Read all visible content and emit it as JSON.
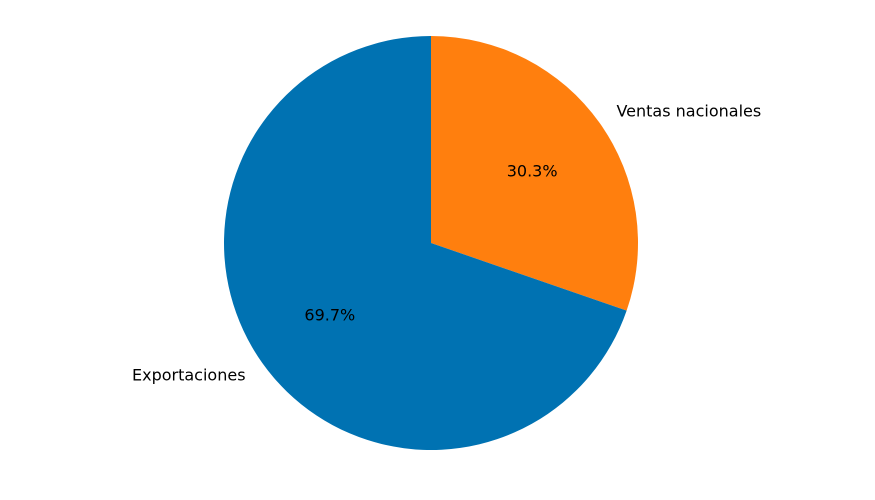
{
  "chart_data": {
    "type": "pie",
    "title": "",
    "start_angle_deg": 90,
    "direction": "clockwise",
    "slices": [
      {
        "label": "Ventas nacionales",
        "value": 30.3,
        "pct_label": "30.3%",
        "color": "#FF7F0E"
      },
      {
        "label": "Exportaciones",
        "value": 69.7,
        "pct_label": "69.7%",
        "color": "#0072B2"
      }
    ]
  }
}
